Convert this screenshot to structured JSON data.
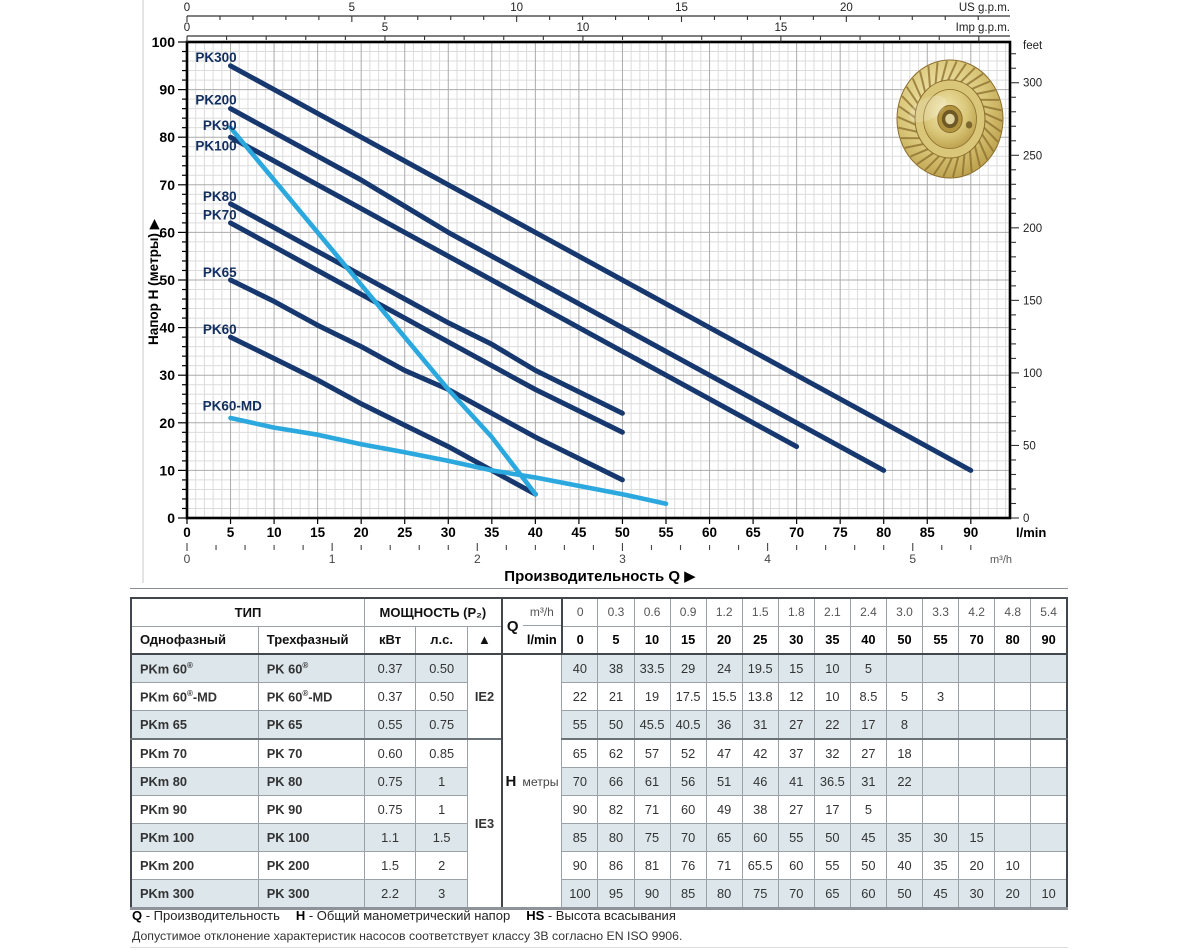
{
  "chart_data": {
    "type": "line",
    "title": "",
    "xlabel": "Производительность Q",
    "xlabel_arrow": "▶",
    "x_unit": "l/min",
    "x_lmin": [
      0,
      5,
      10,
      15,
      20,
      25,
      30,
      35,
      40,
      50,
      55,
      70,
      80,
      90
    ],
    "plot_from_lmin": 5,
    "x_axis_lmin": {
      "tick_step": 5,
      "labeled_max": 90,
      "unit": "l/min",
      "max": 94.5
    },
    "x_axis_m3h": {
      "unit": "m³/h",
      "lmin_per_unit": 16.6667,
      "major_step": 1,
      "minor_step": 0.2,
      "max": 5.6
    },
    "x_axis_us_gpm": {
      "unit": "US g.p.m.",
      "lmin_per_unit": 3.78541,
      "major_step": 5,
      "minor_step": 1,
      "labeled_max": 20
    },
    "x_axis_imp_gpm": {
      "unit": "Imp g.p.m.",
      "lmin_per_unit": 4.54609,
      "major_step": 5,
      "minor_step": 1,
      "labeled_max": 15
    },
    "y_axis": {
      "label": "Напор H (метры)",
      "arrow": "▶",
      "max": 100,
      "tick_step": 10,
      "minor_step": 2
    },
    "y_axis_feet": {
      "unit": "feet",
      "m_per_unit": 0.3048,
      "major_step": 50,
      "minor_step": 10,
      "max": 320
    },
    "grid": true,
    "legend_position": "on-curve-labels",
    "colors": {
      "navy": "#16386f",
      "cyan": "#2BA8DE",
      "label": "#122f60",
      "grid_minor": "#dcdcdc",
      "grid_major": "#ababab"
    },
    "series": [
      {
        "name": "PK300",
        "color": "navy",
        "values": [
          100,
          95,
          90,
          85,
          80,
          75,
          70,
          65,
          60,
          50,
          45,
          30,
          20,
          10
        ],
        "label_at": [
          5.7,
          95.8
        ]
      },
      {
        "name": "PK200",
        "color": "navy",
        "values": [
          90,
          86,
          81,
          76,
          71,
          65.5,
          60,
          55,
          50,
          40,
          35,
          20,
          10,
          null
        ],
        "label_at": [
          5.7,
          86.9
        ]
      },
      {
        "name": "PK90",
        "color": "cyan",
        "values": [
          90,
          82,
          71,
          60,
          49,
          38,
          27,
          17,
          5,
          null,
          null,
          null,
          null,
          null
        ],
        "label_at": [
          5.7,
          81.5
        ]
      },
      {
        "name": "PK100",
        "color": "navy",
        "values": [
          85,
          80,
          75,
          70,
          65,
          60,
          55,
          50,
          45,
          35,
          30,
          15,
          null,
          null
        ],
        "label_at": [
          5.7,
          77.2
        ]
      },
      {
        "name": "PK80",
        "color": "navy",
        "values": [
          70,
          66,
          61,
          56,
          51,
          46,
          41,
          36.5,
          31,
          22,
          null,
          null,
          null,
          null
        ],
        "label_at": [
          5.7,
          66.6
        ]
      },
      {
        "name": "PK70",
        "color": "navy",
        "values": [
          65,
          62,
          57,
          52,
          47,
          42,
          37,
          32,
          27,
          18,
          null,
          null,
          null,
          null
        ],
        "label_at": [
          5.7,
          62.7
        ]
      },
      {
        "name": "PK65",
        "color": "navy",
        "values": [
          55,
          50,
          45.5,
          40.5,
          36,
          31,
          27,
          22,
          17,
          8,
          null,
          null,
          null,
          null
        ],
        "label_at": [
          5.7,
          50.6
        ]
      },
      {
        "name": "PK60",
        "color": "navy",
        "values": [
          40,
          38,
          33.5,
          29,
          24,
          19.5,
          15,
          10,
          5,
          null,
          null,
          null,
          null,
          null
        ],
        "label_at": [
          5.7,
          38.7
        ]
      },
      {
        "name": "PK60-MD",
        "color": "cyan",
        "values": [
          22,
          21,
          19,
          17.5,
          15.5,
          13.8,
          12,
          10,
          8.5,
          5,
          3,
          null,
          null,
          null
        ],
        "label_at": [
          8.6,
          22.6
        ]
      }
    ],
    "impeller_colors": {
      "light": "#f3e9b4",
      "mid": "#d9c678",
      "deep": "#b2943f",
      "line": "#8a6d2c",
      "dark": "#6e5826"
    }
  },
  "table": {
    "col_headers": {
      "tip": "ТИП",
      "power": "МОЩНОСТЬ (P₂)",
      "single_phase": "Однофазный",
      "three_phase": "Трехфазный",
      "kw": "кВт",
      "hp": "л.с.",
      "triangle": "▲",
      "q": "Q",
      "m3h": "m³/h",
      "lmin": "l/min",
      "h": "H",
      "h_unit": "метры"
    },
    "q_m3h": [
      "0",
      "0.3",
      "0.6",
      "0.9",
      "1.2",
      "1.5",
      "1.8",
      "2.1",
      "2.4",
      "3.0",
      "3.3",
      "4.2",
      "4.8",
      "5.4"
    ],
    "q_lmin": [
      "0",
      "5",
      "10",
      "15",
      "20",
      "25",
      "30",
      "35",
      "40",
      "50",
      "55",
      "70",
      "80",
      "90"
    ],
    "ie_groups": [
      {
        "label": "IE2",
        "rows": 3
      },
      {
        "label": "IE3",
        "rows": 6
      }
    ],
    "rows": [
      {
        "single": "PKm 60®",
        "three": "PK 60®",
        "kw": "0.37",
        "hp": "0.50",
        "h": [
          "40",
          "38",
          "33.5",
          "29",
          "24",
          "19.5",
          "15",
          "10",
          "5",
          "",
          "",
          "",
          "",
          ""
        ]
      },
      {
        "single": "PKm 60®-MD",
        "three": "PK 60®-MD",
        "kw": "0.37",
        "hp": "0.50",
        "h": [
          "22",
          "21",
          "19",
          "17.5",
          "15.5",
          "13.8",
          "12",
          "10",
          "8.5",
          "5",
          "3",
          "",
          "",
          ""
        ]
      },
      {
        "single": "PKm 65",
        "three": "PK 65",
        "kw": "0.55",
        "hp": "0.75",
        "h": [
          "55",
          "50",
          "45.5",
          "40.5",
          "36",
          "31",
          "27",
          "22",
          "17",
          "8",
          "",
          "",
          "",
          ""
        ]
      },
      {
        "single": "PKm 70",
        "three": "PK 70",
        "kw": "0.60",
        "hp": "0.85",
        "h": [
          "65",
          "62",
          "57",
          "52",
          "47",
          "42",
          "37",
          "32",
          "27",
          "18",
          "",
          "",
          "",
          ""
        ]
      },
      {
        "single": "PKm 80",
        "three": "PK 80",
        "kw": "0.75",
        "hp": "1",
        "h": [
          "70",
          "66",
          "61",
          "56",
          "51",
          "46",
          "41",
          "36.5",
          "31",
          "22",
          "",
          "",
          "",
          ""
        ]
      },
      {
        "single": "PKm 90",
        "three": "PK 90",
        "kw": "0.75",
        "hp": "1",
        "h": [
          "90",
          "82",
          "71",
          "60",
          "49",
          "38",
          "27",
          "17",
          "5",
          "",
          "",
          "",
          "",
          ""
        ]
      },
      {
        "single": "PKm 100",
        "three": "PK 100",
        "kw": "1.1",
        "hp": "1.5",
        "h": [
          "85",
          "80",
          "75",
          "70",
          "65",
          "60",
          "55",
          "50",
          "45",
          "35",
          "30",
          "15",
          "",
          ""
        ]
      },
      {
        "single": "PKm 200",
        "three": "PK 200",
        "kw": "1.5",
        "hp": "2",
        "h": [
          "90",
          "86",
          "81",
          "76",
          "71",
          "65.5",
          "60",
          "55",
          "50",
          "40",
          "35",
          "20",
          "10",
          ""
        ]
      },
      {
        "single": "PKm 300",
        "three": "PK 300",
        "kw": "2.2",
        "hp": "3",
        "h": [
          "100",
          "95",
          "90",
          "85",
          "80",
          "75",
          "70",
          "65",
          "60",
          "50",
          "45",
          "30",
          "20",
          "10"
        ]
      }
    ]
  },
  "footer": {
    "legend": [
      {
        "term": "Q",
        "desc": "Производительность"
      },
      {
        "term": "H",
        "desc": "Общий манометрический напор"
      },
      {
        "term": "HS",
        "desc": "Высота всасывания"
      }
    ],
    "note": "Допустимое отклонение характеристик насосов соответствует классу 3B согласно EN ISO 9906."
  }
}
